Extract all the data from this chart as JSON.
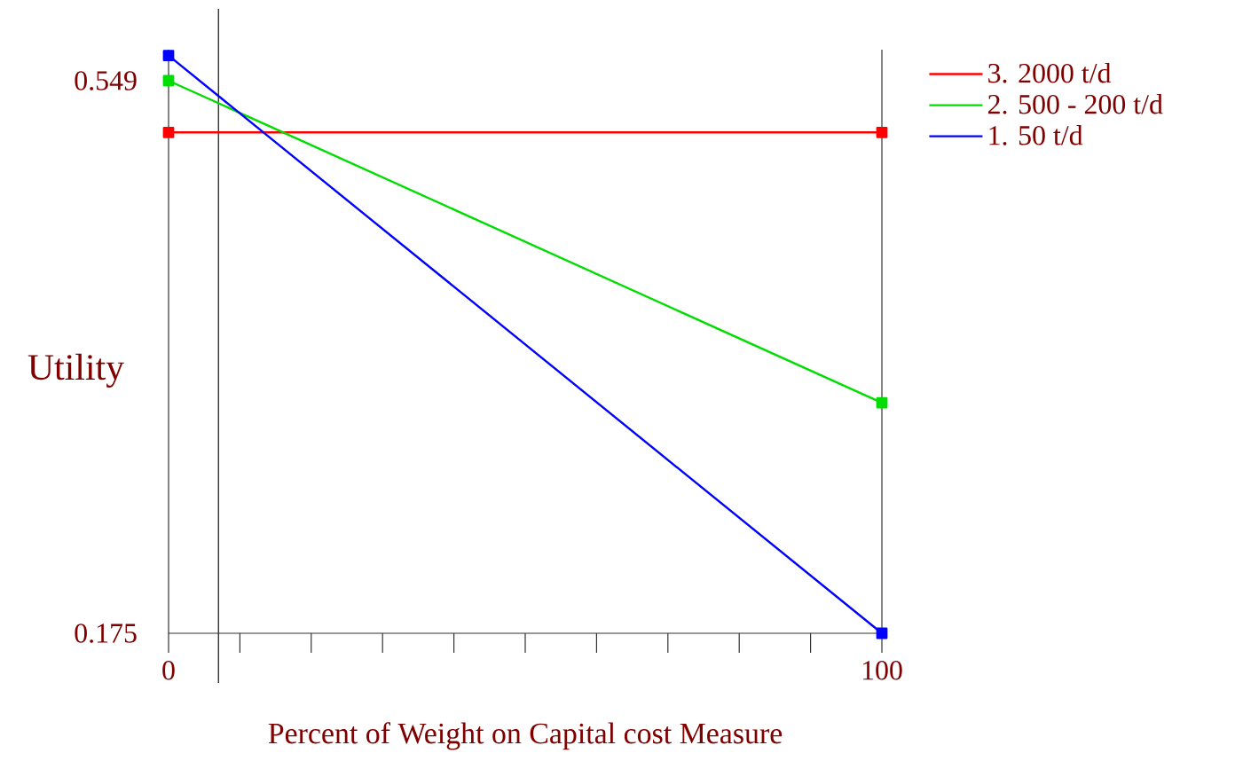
{
  "chart_data": {
    "type": "line",
    "xlabel": "Percent of Weight on Capital cost Measure",
    "ylabel": "Utility",
    "xlim": [
      0,
      100
    ],
    "ylim": [
      0.175,
      0.57
    ],
    "xticks": [
      0,
      {
        "value": 10,
        "label": null
      },
      {
        "value": 20,
        "label": null
      },
      {
        "value": 30,
        "label": null
      },
      {
        "value": 40,
        "label": null
      },
      {
        "value": 50,
        "label": null
      },
      {
        "value": 60,
        "label": null
      },
      {
        "value": 70,
        "label": null
      },
      {
        "value": 80,
        "label": null
      },
      {
        "value": 90,
        "label": null
      },
      100
    ],
    "yticks": [
      0.175,
      0.549
    ],
    "x": [
      0,
      100
    ],
    "series": [
      {
        "name": "3. 2000 t/d",
        "color": "#ff0000",
        "values": [
          0.514,
          0.514
        ]
      },
      {
        "name": "2. 500 - 200 t/d",
        "color": "#00dd00",
        "values": [
          0.549,
          0.331
        ]
      },
      {
        "name": "1. 50 t/d",
        "color": "#0000ff",
        "values": [
          0.566,
          0.175
        ]
      }
    ],
    "ref_lines": [
      {
        "axis": "x",
        "value": 7,
        "color": "#333333"
      }
    ],
    "marker": "square",
    "legend": "top right",
    "grid": false
  }
}
